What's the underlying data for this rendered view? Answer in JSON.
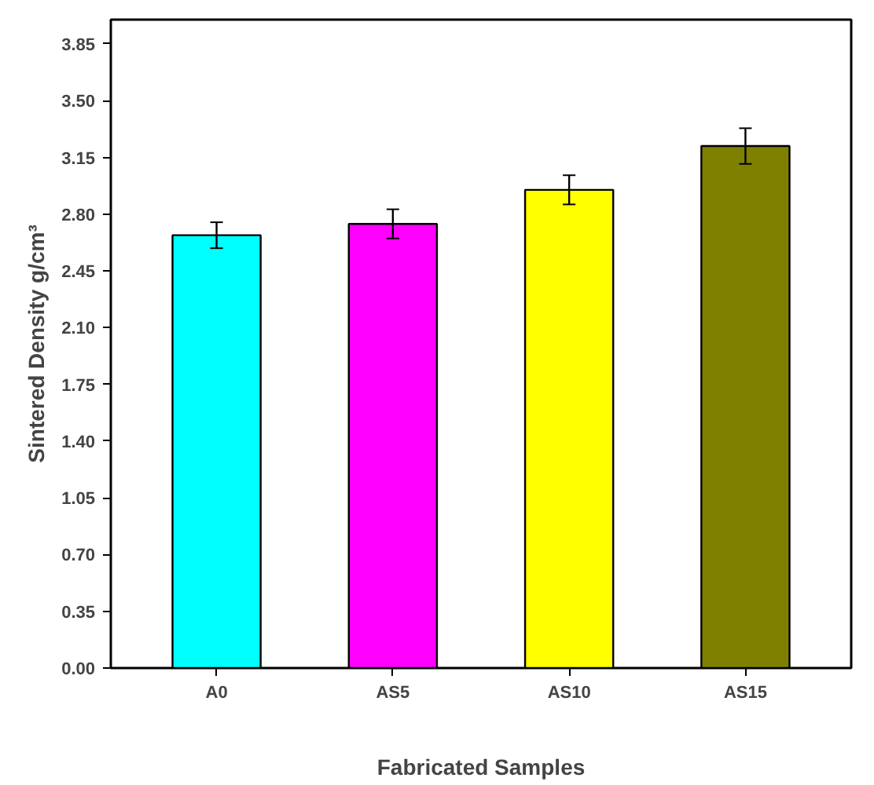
{
  "chart_data": {
    "type": "bar",
    "xlabel": "Fabricated Samples",
    "ylabel": "Sintered Density g/cm³",
    "categories": [
      "A0",
      "AS5",
      "AS10",
      "AS15"
    ],
    "values": [
      2.67,
      2.74,
      2.95,
      3.22
    ],
    "colors": [
      "#00ffff",
      "#ff00ff",
      "#ffff00",
      "#808000"
    ],
    "errors": [
      0.08,
      0.09,
      0.09,
      0.11
    ],
    "ylim": [
      0,
      4.0
    ],
    "yticks": [
      {
        "value": 0,
        "label": "0.00"
      },
      {
        "value": 0.35,
        "label": "0.35"
      },
      {
        "value": 0.7,
        "label": "0.70"
      },
      {
        "value": 1.05,
        "label": "1.05"
      },
      {
        "value": 1.4,
        "label": "1.40"
      },
      {
        "value": 1.75,
        "label": "1.75"
      },
      {
        "value": 2.1,
        "label": "2.10"
      },
      {
        "value": 2.45,
        "label": "2.45"
      },
      {
        "value": 2.8,
        "label": "2.80"
      },
      {
        "value": 3.15,
        "label": "3.15"
      },
      {
        "value": 3.5,
        "label": "3.50"
      },
      {
        "value": 3.85,
        "label": "3.85"
      }
    ],
    "grid": false
  }
}
